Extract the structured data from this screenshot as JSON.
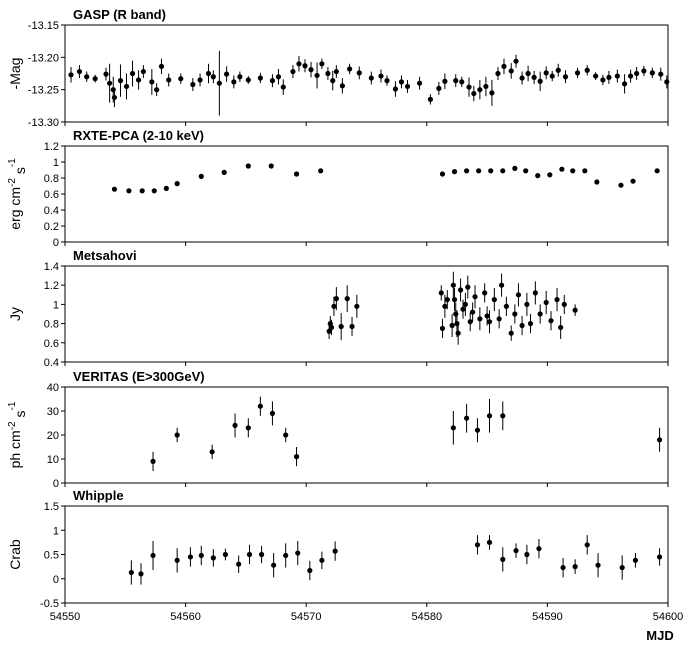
{
  "xlabel": "MJD",
  "x_axis": {
    "min": 54550,
    "max": 54600,
    "ticks": [
      54550,
      54560,
      54570,
      54580,
      54590,
      54600
    ]
  },
  "chart_data": [
    {
      "type": "scatter",
      "title": "GASP (R band)",
      "ylabel": "-Mag",
      "ylim": [
        -13.3,
        -13.15
      ],
      "yticks": [
        -13.15,
        -13.2,
        -13.25,
        -13.3
      ],
      "ytick_labels": [
        "-13.15",
        "-13.20",
        "-13.25",
        "-13.30"
      ],
      "points": [
        {
          "x": 54550.5,
          "y": -13.227,
          "e": 0.012
        },
        {
          "x": 54551.2,
          "y": -13.222,
          "e": 0.01
        },
        {
          "x": 54551.8,
          "y": -13.23,
          "e": 0.008
        },
        {
          "x": 54552.5,
          "y": -13.233,
          "e": 0.006
        },
        {
          "x": 54553.4,
          "y": -13.226,
          "e": 0.01
        },
        {
          "x": 54553.7,
          "y": -13.24,
          "e": 0.03
        },
        {
          "x": 54554.0,
          "y": -13.25,
          "e": 0.02
        },
        {
          "x": 54554.1,
          "y": -13.262,
          "e": 0.015
        },
        {
          "x": 54554.6,
          "y": -13.236,
          "e": 0.025
        },
        {
          "x": 54555.1,
          "y": -13.245,
          "e": 0.02
        },
        {
          "x": 54555.6,
          "y": -13.225,
          "e": 0.02
        },
        {
          "x": 54556.1,
          "y": -13.235,
          "e": 0.015
        },
        {
          "x": 54556.5,
          "y": -13.222,
          "e": 0.01
        },
        {
          "x": 54557.2,
          "y": -13.238,
          "e": 0.02
        },
        {
          "x": 54557.6,
          "y": -13.25,
          "e": 0.01
        },
        {
          "x": 54558.0,
          "y": -13.214,
          "e": 0.012
        },
        {
          "x": 54558.6,
          "y": -13.235,
          "e": 0.01
        },
        {
          "x": 54559.6,
          "y": -13.233,
          "e": 0.008
        },
        {
          "x": 54560.6,
          "y": -13.242,
          "e": 0.01
        },
        {
          "x": 54561.2,
          "y": -13.235,
          "e": 0.01
        },
        {
          "x": 54561.9,
          "y": -13.225,
          "e": 0.015
        },
        {
          "x": 54562.3,
          "y": -13.23,
          "e": 0.01
        },
        {
          "x": 54562.8,
          "y": -13.24,
          "e": 0.05
        },
        {
          "x": 54563.4,
          "y": -13.226,
          "e": 0.012
        },
        {
          "x": 54564.0,
          "y": -13.238,
          "e": 0.01
        },
        {
          "x": 54564.5,
          "y": -13.23,
          "e": 0.008
        },
        {
          "x": 54565.2,
          "y": -13.235,
          "e": 0.006
        },
        {
          "x": 54566.2,
          "y": -13.232,
          "e": 0.008
        },
        {
          "x": 54567.2,
          "y": -13.236,
          "e": 0.01
        },
        {
          "x": 54567.7,
          "y": -13.23,
          "e": 0.012
        },
        {
          "x": 54568.1,
          "y": -13.246,
          "e": 0.012
        },
        {
          "x": 54568.9,
          "y": -13.222,
          "e": 0.01
        },
        {
          "x": 54569.4,
          "y": -13.21,
          "e": 0.012
        },
        {
          "x": 54569.9,
          "y": -13.213,
          "e": 0.01
        },
        {
          "x": 54570.4,
          "y": -13.219,
          "e": 0.012
        },
        {
          "x": 54570.9,
          "y": -13.228,
          "e": 0.02
        },
        {
          "x": 54571.3,
          "y": -13.21,
          "e": 0.008
        },
        {
          "x": 54571.8,
          "y": -13.225,
          "e": 0.01
        },
        {
          "x": 54572.2,
          "y": -13.236,
          "e": 0.015
        },
        {
          "x": 54572.5,
          "y": -13.222,
          "e": 0.01
        },
        {
          "x": 54573.0,
          "y": -13.244,
          "e": 0.012
        },
        {
          "x": 54573.6,
          "y": -13.218,
          "e": 0.008
        },
        {
          "x": 54574.4,
          "y": -13.224,
          "e": 0.01
        },
        {
          "x": 54575.4,
          "y": -13.232,
          "e": 0.01
        },
        {
          "x": 54576.2,
          "y": -13.229,
          "e": 0.01
        },
        {
          "x": 54576.7,
          "y": -13.236,
          "e": 0.008
        },
        {
          "x": 54577.4,
          "y": -13.249,
          "e": 0.012
        },
        {
          "x": 54577.9,
          "y": -13.238,
          "e": 0.01
        },
        {
          "x": 54578.4,
          "y": -13.245,
          "e": 0.01
        },
        {
          "x": 54579.4,
          "y": -13.24,
          "e": 0.01
        },
        {
          "x": 54580.3,
          "y": -13.265,
          "e": 0.008
        },
        {
          "x": 54581.0,
          "y": -13.248,
          "e": 0.01
        },
        {
          "x": 54581.5,
          "y": -13.237,
          "e": 0.012
        },
        {
          "x": 54582.4,
          "y": -13.236,
          "e": 0.01
        },
        {
          "x": 54582.9,
          "y": -13.238,
          "e": 0.008
        },
        {
          "x": 54583.5,
          "y": -13.246,
          "e": 0.015
        },
        {
          "x": 54583.9,
          "y": -13.256,
          "e": 0.012
        },
        {
          "x": 54584.4,
          "y": -13.25,
          "e": 0.015
        },
        {
          "x": 54584.9,
          "y": -13.245,
          "e": 0.015
        },
        {
          "x": 54585.4,
          "y": -13.255,
          "e": 0.02
        },
        {
          "x": 54585.9,
          "y": -13.225,
          "e": 0.01
        },
        {
          "x": 54586.4,
          "y": -13.214,
          "e": 0.012
        },
        {
          "x": 54587.0,
          "y": -13.221,
          "e": 0.012
        },
        {
          "x": 54587.4,
          "y": -13.206,
          "e": 0.01
        },
        {
          "x": 54587.9,
          "y": -13.232,
          "e": 0.01
        },
        {
          "x": 54588.4,
          "y": -13.225,
          "e": 0.012
        },
        {
          "x": 54588.9,
          "y": -13.231,
          "e": 0.01
        },
        {
          "x": 54589.4,
          "y": -13.237,
          "e": 0.015
        },
        {
          "x": 54589.9,
          "y": -13.224,
          "e": 0.01
        },
        {
          "x": 54590.4,
          "y": -13.229,
          "e": 0.008
        },
        {
          "x": 54590.9,
          "y": -13.22,
          "e": 0.01
        },
        {
          "x": 54591.5,
          "y": -13.23,
          "e": 0.01
        },
        {
          "x": 54592.5,
          "y": -13.224,
          "e": 0.008
        },
        {
          "x": 54593.3,
          "y": -13.22,
          "e": 0.008
        },
        {
          "x": 54594.0,
          "y": -13.229,
          "e": 0.006
        },
        {
          "x": 54594.6,
          "y": -13.235,
          "e": 0.008
        },
        {
          "x": 54595.1,
          "y": -13.231,
          "e": 0.01
        },
        {
          "x": 54595.8,
          "y": -13.229,
          "e": 0.01
        },
        {
          "x": 54596.4,
          "y": -13.241,
          "e": 0.015
        },
        {
          "x": 54596.9,
          "y": -13.229,
          "e": 0.01
        },
        {
          "x": 54597.4,
          "y": -13.225,
          "e": 0.01
        },
        {
          "x": 54598.0,
          "y": -13.221,
          "e": 0.008
        },
        {
          "x": 54598.7,
          "y": -13.224,
          "e": 0.008
        },
        {
          "x": 54599.4,
          "y": -13.226,
          "e": 0.01
        },
        {
          "x": 54599.9,
          "y": -13.238,
          "e": 0.01
        }
      ]
    },
    {
      "type": "scatter",
      "title": "RXTE-PCA (2-10 keV)",
      "ylabel": "erg cm-2 s-1",
      "ylim": [
        0,
        1.2
      ],
      "yticks": [
        0,
        0.2,
        0.4,
        0.6,
        0.8,
        1.0,
        1.2
      ],
      "ytick_labels": [
        "0",
        "0.2",
        "0.4",
        "0.6",
        "0.8",
        "1",
        "1.2"
      ],
      "points": [
        {
          "x": 54554.1,
          "y": 0.66
        },
        {
          "x": 54555.3,
          "y": 0.64
        },
        {
          "x": 54556.4,
          "y": 0.64
        },
        {
          "x": 54557.4,
          "y": 0.64
        },
        {
          "x": 54558.4,
          "y": 0.67
        },
        {
          "x": 54559.3,
          "y": 0.73
        },
        {
          "x": 54561.3,
          "y": 0.82
        },
        {
          "x": 54563.2,
          "y": 0.87
        },
        {
          "x": 54565.2,
          "y": 0.95
        },
        {
          "x": 54567.1,
          "y": 0.95
        },
        {
          "x": 54569.2,
          "y": 0.85
        },
        {
          "x": 54571.2,
          "y": 0.89
        },
        {
          "x": 54581.3,
          "y": 0.85
        },
        {
          "x": 54582.3,
          "y": 0.88
        },
        {
          "x": 54583.3,
          "y": 0.89
        },
        {
          "x": 54584.3,
          "y": 0.89
        },
        {
          "x": 54585.3,
          "y": 0.89
        },
        {
          "x": 54586.3,
          "y": 0.89
        },
        {
          "x": 54587.3,
          "y": 0.92
        },
        {
          "x": 54588.2,
          "y": 0.89
        },
        {
          "x": 54589.2,
          "y": 0.83
        },
        {
          "x": 54590.2,
          "y": 0.84
        },
        {
          "x": 54591.2,
          "y": 0.91
        },
        {
          "x": 54592.1,
          "y": 0.89
        },
        {
          "x": 54593.1,
          "y": 0.89
        },
        {
          "x": 54594.1,
          "y": 0.75
        },
        {
          "x": 54596.1,
          "y": 0.71
        },
        {
          "x": 54597.1,
          "y": 0.76
        },
        {
          "x": 54599.1,
          "y": 0.89
        }
      ]
    },
    {
      "type": "scatter",
      "title": "Metsahovi",
      "ylabel": "Jy",
      "ylim": [
        0.4,
        1.4
      ],
      "yticks": [
        0.4,
        0.6,
        0.8,
        1.0,
        1.2,
        1.4
      ],
      "ytick_labels": [
        "0.4",
        "0.6",
        "0.8",
        "1",
        "1.2",
        "1.4"
      ],
      "points": [
        {
          "x": 54571.9,
          "y": 0.72,
          "e": 0.08
        },
        {
          "x": 54572.0,
          "y": 0.8,
          "e": 0.08
        },
        {
          "x": 54572.1,
          "y": 0.76,
          "e": 0.08
        },
        {
          "x": 54572.3,
          "y": 0.98,
          "e": 0.1
        },
        {
          "x": 54572.5,
          "y": 1.06,
          "e": 0.12
        },
        {
          "x": 54572.9,
          "y": 0.77,
          "e": 0.14
        },
        {
          "x": 54573.4,
          "y": 1.06,
          "e": 0.14
        },
        {
          "x": 54573.8,
          "y": 0.77,
          "e": 0.1
        },
        {
          "x": 54574.2,
          "y": 0.98,
          "e": 0.12
        },
        {
          "x": 54581.2,
          "y": 1.12,
          "e": 0.08
        },
        {
          "x": 54581.3,
          "y": 0.75,
          "e": 0.1
        },
        {
          "x": 54581.5,
          "y": 0.98,
          "e": 0.12
        },
        {
          "x": 54581.7,
          "y": 1.05,
          "e": 0.1
        },
        {
          "x": 54582.1,
          "y": 0.78,
          "e": 0.12
        },
        {
          "x": 54582.2,
          "y": 1.2,
          "e": 0.14
        },
        {
          "x": 54582.3,
          "y": 1.05,
          "e": 0.12
        },
        {
          "x": 54582.4,
          "y": 0.9,
          "e": 0.12
        },
        {
          "x": 54582.5,
          "y": 0.8,
          "e": 0.14
        },
        {
          "x": 54582.6,
          "y": 0.7,
          "e": 0.12
        },
        {
          "x": 54582.8,
          "y": 1.15,
          "e": 0.12
        },
        {
          "x": 54583.0,
          "y": 0.95,
          "e": 0.1
        },
        {
          "x": 54583.2,
          "y": 1.0,
          "e": 0.12
        },
        {
          "x": 54583.4,
          "y": 1.18,
          "e": 0.12
        },
        {
          "x": 54583.6,
          "y": 0.82,
          "e": 0.1
        },
        {
          "x": 54583.8,
          "y": 0.92,
          "e": 0.1
        },
        {
          "x": 54584.0,
          "y": 1.08,
          "e": 0.12
        },
        {
          "x": 54584.4,
          "y": 0.85,
          "e": 0.12
        },
        {
          "x": 54584.8,
          "y": 1.12,
          "e": 0.1
        },
        {
          "x": 54585.0,
          "y": 0.88,
          "e": 0.1
        },
        {
          "x": 54585.2,
          "y": 0.82,
          "e": 0.12
        },
        {
          "x": 54585.6,
          "y": 1.05,
          "e": 0.12
        },
        {
          "x": 54586.0,
          "y": 0.85,
          "e": 0.1
        },
        {
          "x": 54586.2,
          "y": 1.2,
          "e": 0.12
        },
        {
          "x": 54586.6,
          "y": 0.98,
          "e": 0.1
        },
        {
          "x": 54587.0,
          "y": 0.7,
          "e": 0.08
        },
        {
          "x": 54587.3,
          "y": 0.9,
          "e": 0.1
        },
        {
          "x": 54587.6,
          "y": 1.1,
          "e": 0.12
        },
        {
          "x": 54587.9,
          "y": 0.78,
          "e": 0.1
        },
        {
          "x": 54588.3,
          "y": 1.0,
          "e": 0.12
        },
        {
          "x": 54588.6,
          "y": 0.8,
          "e": 0.1
        },
        {
          "x": 54589.0,
          "y": 1.12,
          "e": 0.12
        },
        {
          "x": 54589.4,
          "y": 0.9,
          "e": 0.1
        },
        {
          "x": 54589.9,
          "y": 1.02,
          "e": 0.12
        },
        {
          "x": 54590.3,
          "y": 0.83,
          "e": 0.1
        },
        {
          "x": 54590.8,
          "y": 1.05,
          "e": 0.12
        },
        {
          "x": 54591.1,
          "y": 0.76,
          "e": 0.12
        },
        {
          "x": 54591.4,
          "y": 1.0,
          "e": 0.1
        },
        {
          "x": 54592.3,
          "y": 0.94,
          "e": 0.06
        }
      ]
    },
    {
      "type": "scatter",
      "title": "VERITAS (E>300GeV)",
      "ylabel": "ph cm-2 s-1",
      "ylim": [
        0,
        40
      ],
      "yticks": [
        0,
        10,
        20,
        30,
        40
      ],
      "ytick_labels": [
        "0",
        "10",
        "20",
        "30",
        "40"
      ],
      "points": [
        {
          "x": 54557.3,
          "y": 9,
          "e": 4
        },
        {
          "x": 54559.3,
          "y": 20,
          "e": 3
        },
        {
          "x": 54562.2,
          "y": 13,
          "e": 3
        },
        {
          "x": 54564.1,
          "y": 24,
          "e": 5
        },
        {
          "x": 54565.2,
          "y": 23,
          "e": 4
        },
        {
          "x": 54566.2,
          "y": 32,
          "e": 4
        },
        {
          "x": 54567.2,
          "y": 29,
          "e": 5
        },
        {
          "x": 54568.3,
          "y": 20,
          "e": 3
        },
        {
          "x": 54569.2,
          "y": 11,
          "e": 4
        },
        {
          "x": 54582.2,
          "y": 23,
          "e": 7
        },
        {
          "x": 54583.3,
          "y": 27,
          "e": 6
        },
        {
          "x": 54584.2,
          "y": 22,
          "e": 5
        },
        {
          "x": 54585.2,
          "y": 28,
          "e": 7
        },
        {
          "x": 54586.3,
          "y": 28,
          "e": 6
        },
        {
          "x": 54599.3,
          "y": 18,
          "e": 5
        }
      ]
    },
    {
      "type": "scatter",
      "title": "Whipple",
      "ylabel": "Crab",
      "ylim": [
        -0.5,
        1.5
      ],
      "yticks": [
        -0.5,
        0,
        0.5,
        1.0,
        1.5
      ],
      "ytick_labels": [
        "-0.5",
        "0",
        "0.5",
        "1",
        "1.5"
      ],
      "points": [
        {
          "x": 54555.5,
          "y": 0.13,
          "e": 0.25
        },
        {
          "x": 54556.3,
          "y": 0.1,
          "e": 0.22
        },
        {
          "x": 54557.3,
          "y": 0.48,
          "e": 0.3
        },
        {
          "x": 54559.3,
          "y": 0.38,
          "e": 0.25
        },
        {
          "x": 54560.4,
          "y": 0.45,
          "e": 0.2
        },
        {
          "x": 54561.3,
          "y": 0.48,
          "e": 0.2
        },
        {
          "x": 54562.3,
          "y": 0.43,
          "e": 0.18
        },
        {
          "x": 54563.3,
          "y": 0.5,
          "e": 0.12
        },
        {
          "x": 54564.4,
          "y": 0.3,
          "e": 0.18
        },
        {
          "x": 54565.3,
          "y": 0.5,
          "e": 0.2
        },
        {
          "x": 54566.3,
          "y": 0.5,
          "e": 0.18
        },
        {
          "x": 54567.3,
          "y": 0.28,
          "e": 0.25
        },
        {
          "x": 54568.3,
          "y": 0.48,
          "e": 0.25
        },
        {
          "x": 54569.3,
          "y": 0.53,
          "e": 0.25
        },
        {
          "x": 54570.3,
          "y": 0.17,
          "e": 0.2
        },
        {
          "x": 54571.3,
          "y": 0.38,
          "e": 0.18
        },
        {
          "x": 54572.4,
          "y": 0.57,
          "e": 0.2
        },
        {
          "x": 54584.2,
          "y": 0.7,
          "e": 0.2
        },
        {
          "x": 54585.2,
          "y": 0.75,
          "e": 0.15
        },
        {
          "x": 54586.3,
          "y": 0.4,
          "e": 0.25
        },
        {
          "x": 54587.4,
          "y": 0.58,
          "e": 0.15
        },
        {
          "x": 54588.3,
          "y": 0.5,
          "e": 0.2
        },
        {
          "x": 54589.3,
          "y": 0.62,
          "e": 0.2
        },
        {
          "x": 54591.3,
          "y": 0.23,
          "e": 0.2
        },
        {
          "x": 54592.3,
          "y": 0.25,
          "e": 0.15
        },
        {
          "x": 54593.3,
          "y": 0.7,
          "e": 0.2
        },
        {
          "x": 54594.2,
          "y": 0.28,
          "e": 0.25
        },
        {
          "x": 54596.2,
          "y": 0.23,
          "e": 0.25
        },
        {
          "x": 54597.3,
          "y": 0.38,
          "e": 0.15
        },
        {
          "x": 54599.3,
          "y": 0.45,
          "e": 0.18
        }
      ]
    }
  ]
}
